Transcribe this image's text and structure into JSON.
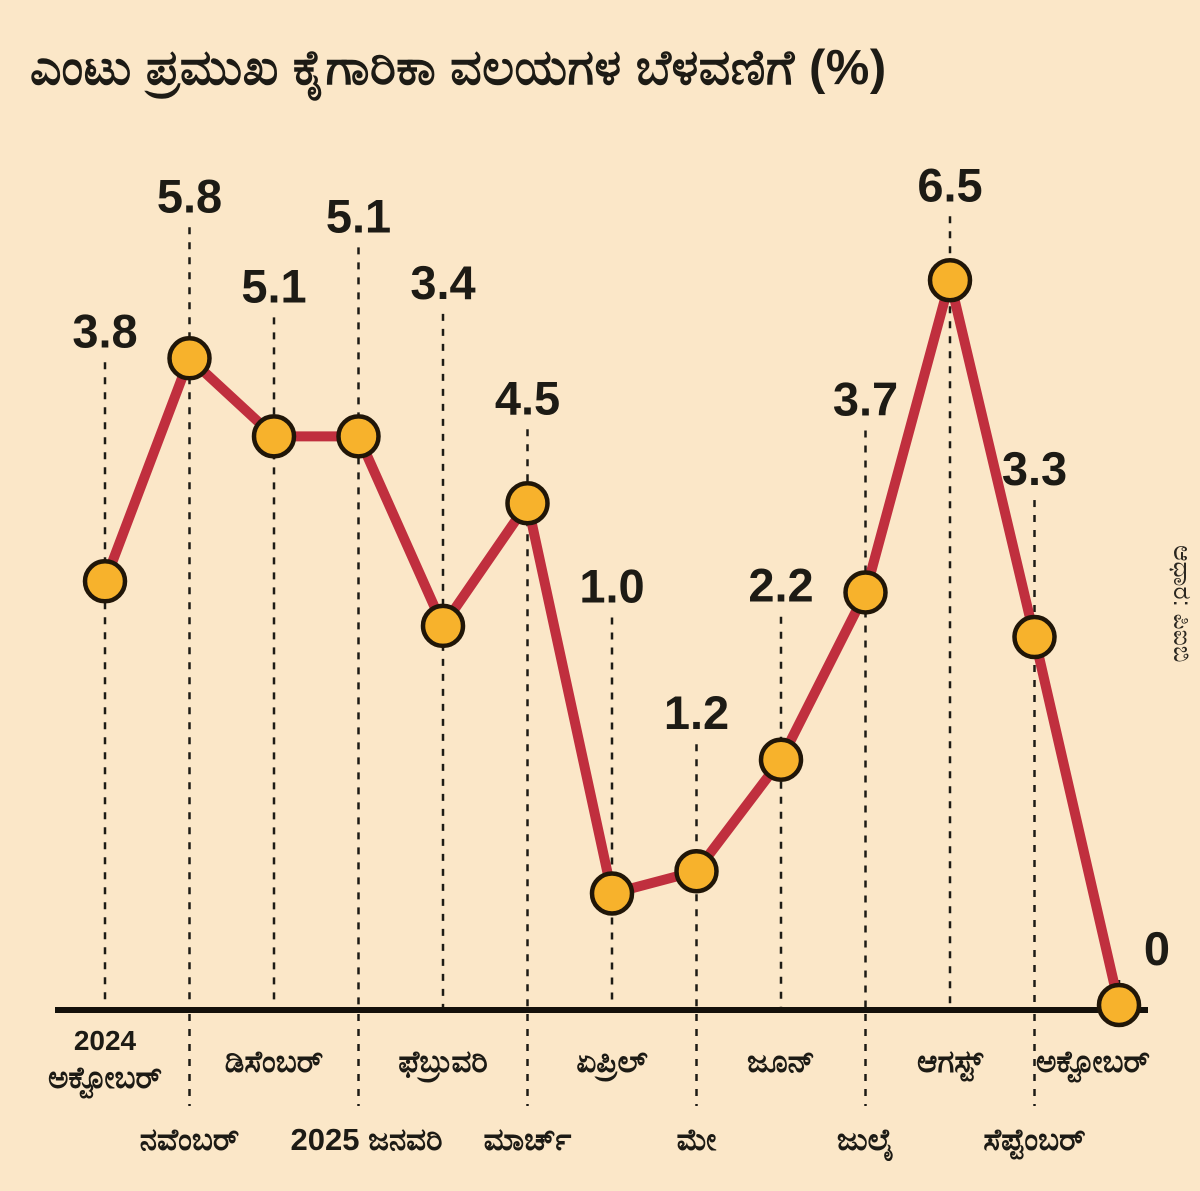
{
  "page": {
    "title": "ಎಂಟು ಪ್ರಮುಖ ಕೈಗಾರಿಕಾ ವಲಯಗಳ ಬೆಳವಣಿಗೆ (%)",
    "source": "ಆಧಾರ: ಪಿಐಬಿ"
  },
  "chart_data": {
    "type": "line",
    "title": "ಎಂಟು ಪ್ರಮುಖ ಕೈಗಾರಿಕಾ ವಲಯಗಳ ಬೆಳವಣಿಗೆ (%)",
    "source": "ಆಧಾರ: ಪಿಐಬಿ",
    "categories": [
      "2024 ಅಕ್ಟೋಬರ್",
      "ನವೆಂಬರ್",
      "ಡಿಸೆಂಬರ್",
      "2025 ಜನವರಿ",
      "ಫೆಬ್ರುವರಿ",
      "ಮಾರ್ಚ್",
      "ಏಪ್ರಿಲ್",
      "ಮೇ",
      "ಜೂನ್",
      "ಜುಲೈ",
      "ಆಗಸ್ಟ್",
      "ಸೆಪ್ಟೆಂಬರ್",
      "ಅಕ್ಟೋಬರ್"
    ],
    "values": [
      3.8,
      5.8,
      5.1,
      5.1,
      3.4,
      4.5,
      1.0,
      1.2,
      2.2,
      3.7,
      6.5,
      3.3,
      0
    ],
    "value_labels": [
      "3.8",
      "5.8",
      "5.1",
      "5.1",
      "3.4",
      "4.5",
      "1.0",
      "1.2",
      "2.2",
      "3.7",
      "6.5",
      "3.3",
      "0"
    ],
    "axis_labels": [
      {
        "text": "ಅಕ್ಟೋಬರ್",
        "prefix": "2024",
        "row": 1
      },
      {
        "text": "ನವೆಂಬರ್",
        "row": 2
      },
      {
        "text": "ಡಿಸೆಂಬರ್",
        "row": 1
      },
      {
        "text": "ಜನವರಿ",
        "prefix": "2025",
        "row": 2
      },
      {
        "text": "ಫೆಬ್ರುವರಿ",
        "row": 1
      },
      {
        "text": "ಮಾರ್ಚ್",
        "row": 2
      },
      {
        "text": "ಏಪ್ರಿಲ್",
        "row": 1
      },
      {
        "text": "ಮೇ",
        "row": 2
      },
      {
        "text": "ಜೂನ್",
        "row": 1
      },
      {
        "text": "ಜುಲೈ",
        "row": 2
      },
      {
        "text": "ಆಗಸ್ಟ್",
        "row": 1
      },
      {
        "text": "ಸೆಪ್ಟೆಂಬರ್",
        "row": 2
      },
      {
        "text": "ಅಕ್ಟೋಬರ್",
        "row": 1
      }
    ],
    "xlabel": "",
    "ylabel": "",
    "ylim": [
      0,
      7
    ],
    "grid": false,
    "legend": false,
    "guide_lines": "dashed-vertical",
    "colors": {
      "background": "#fbe7c8",
      "line": "#c02f3e",
      "marker_fill": "#f7b22c",
      "marker_stroke": "#201608",
      "text": "#1d1b15",
      "axis": "#14110b"
    }
  }
}
